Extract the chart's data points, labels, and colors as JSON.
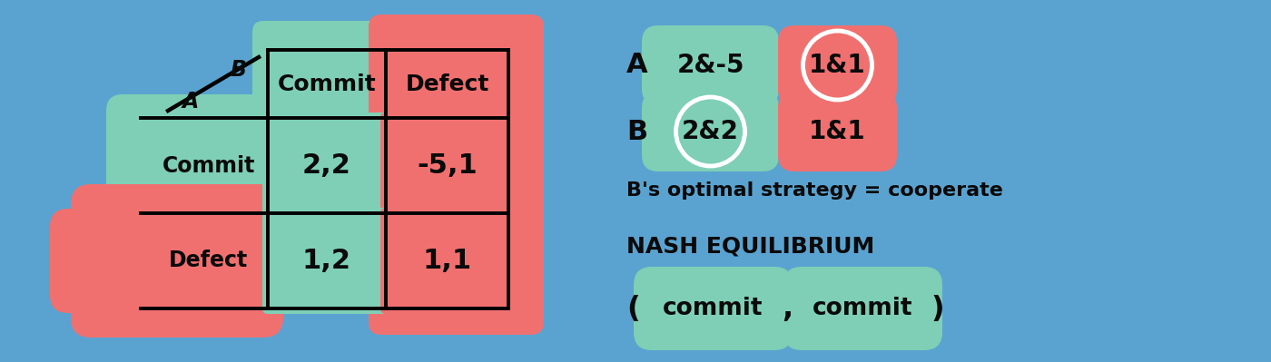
{
  "background_color": "#5aA3d0",
  "colors": {
    "green": "#7ecfb5",
    "red": "#f07070",
    "black": "#0a0a0a",
    "white": "#ffffff"
  },
  "matrix": {
    "rows": [
      "Commit",
      "Defect"
    ],
    "cols": [
      "Commit",
      "Defect"
    ],
    "values": [
      [
        "2,2",
        "-5,1"
      ],
      [
        "1,2",
        "1,1"
      ]
    ]
  },
  "right": {
    "A_green": "2&-5",
    "A_red": "1&1",
    "B_green": "2&2",
    "B_red": "1&1",
    "line1": "B's optimal strategy = cooperate",
    "line2": "NASH EQUILIBRIUM",
    "ne_open": "(",
    "ne_commit1": "commit",
    "ne_comma": ",",
    "ne_commit2": "commit",
    "ne_close": ")"
  }
}
